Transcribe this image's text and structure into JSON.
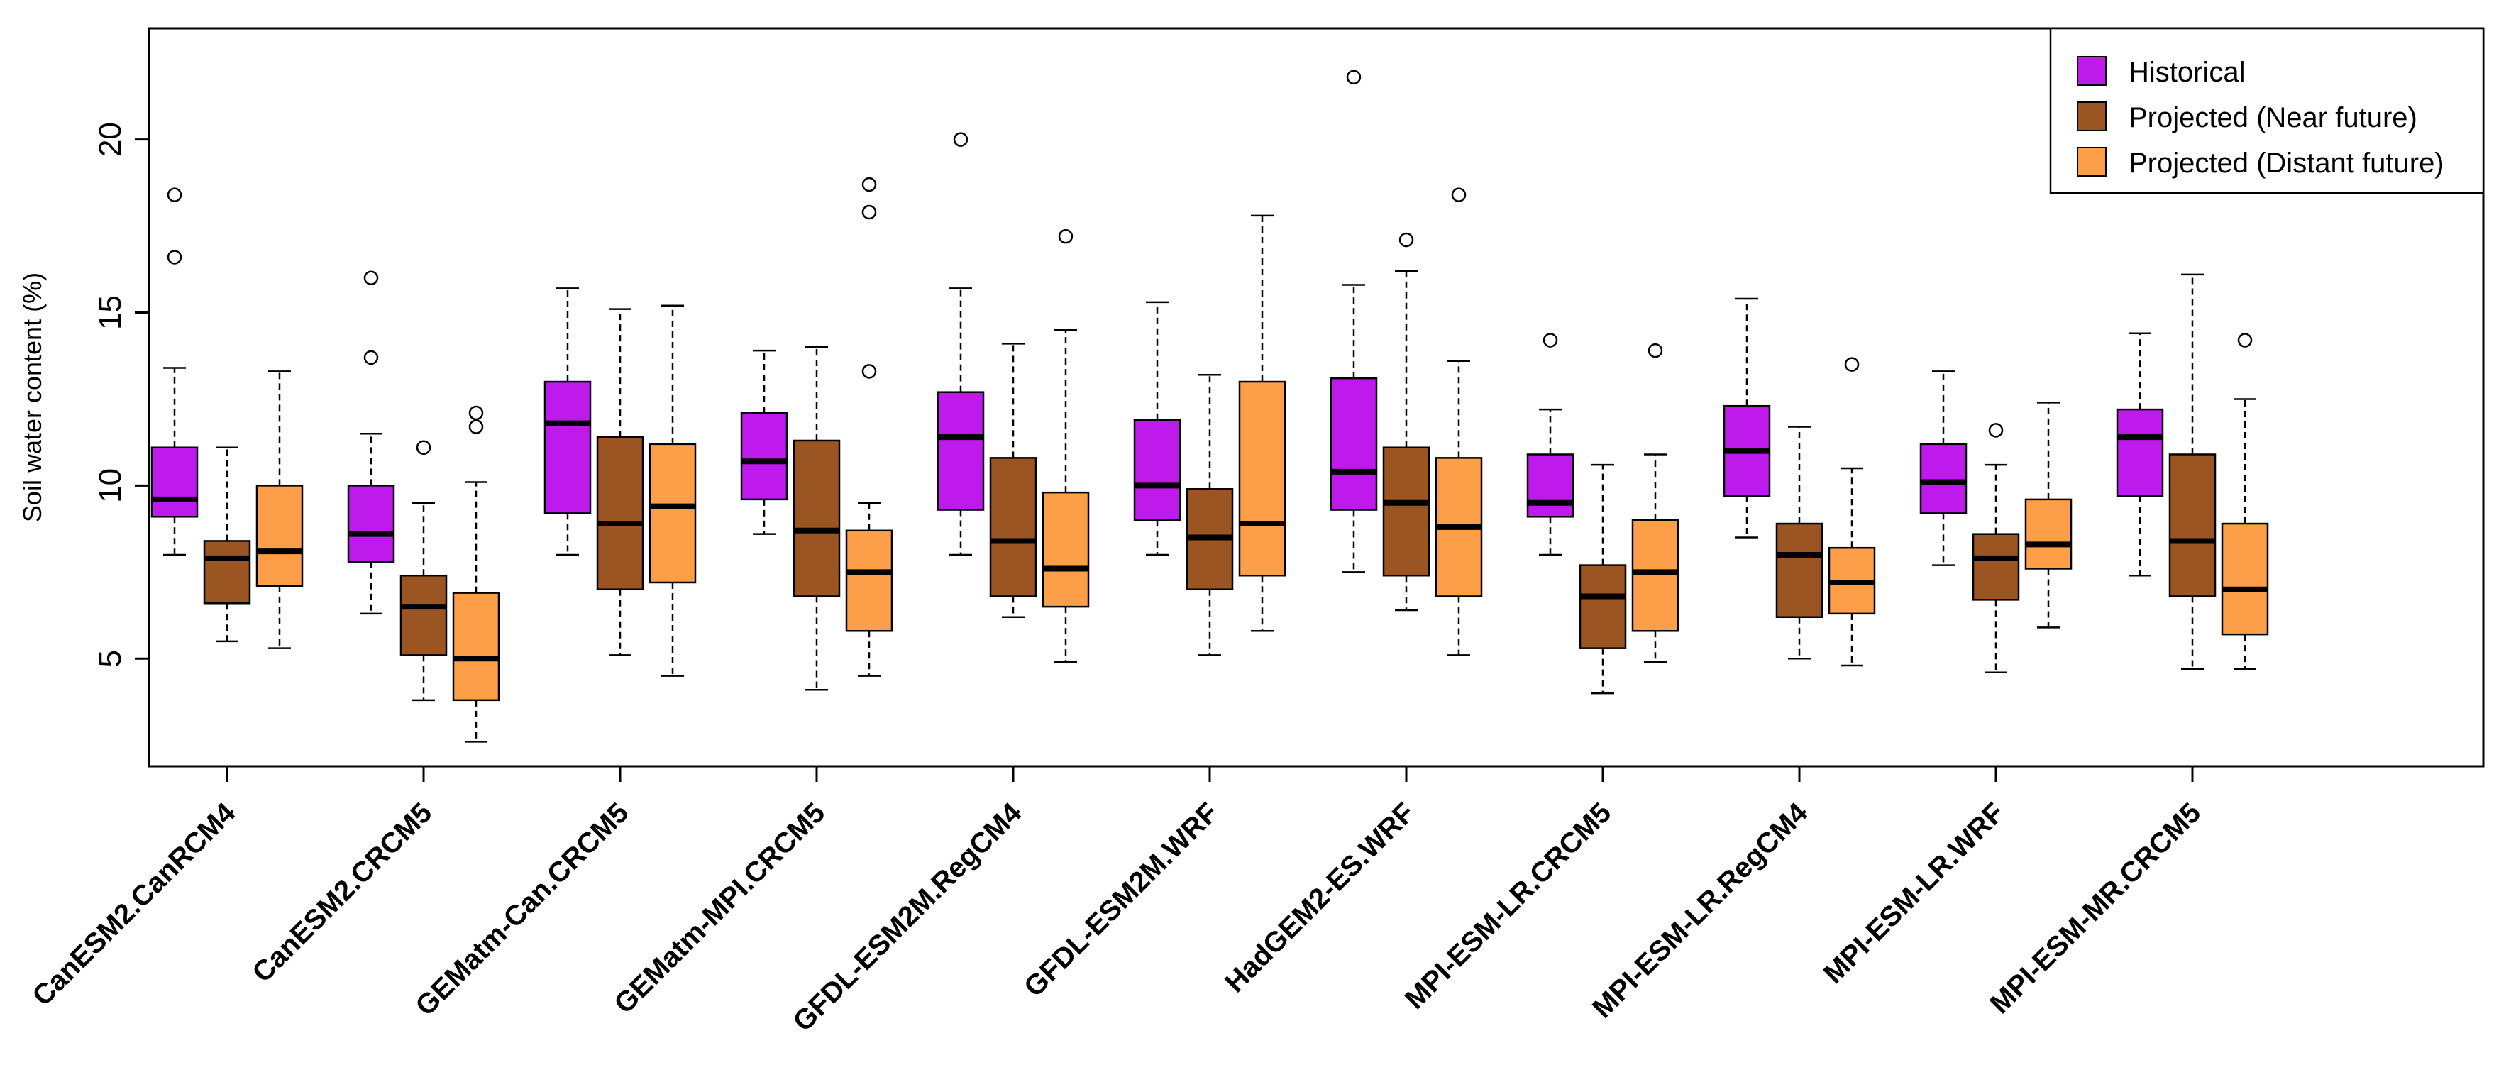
{
  "chart_data": {
    "type": "boxplot",
    "title": "",
    "xlabel": "",
    "ylabel": "Soil water content (%)",
    "ylim": [
      2.3,
      22.8
    ],
    "yticks": [
      5,
      10,
      15,
      20
    ],
    "grid": false,
    "legend_position": "top-right",
    "categories": [
      "CanESM2.CanRCM4",
      "CanESM2.CRCM5",
      "GEMatm-Can.CRCM5",
      "GEMatm-MPI.CRCM5",
      "GFDL-ESM2M.RegCM4",
      "GFDL-ESM2M.WRF",
      "HadGEM2-ES.WRF",
      "MPI-ESM-LR.CRCM5",
      "MPI-ESM-LR.RegCM4",
      "MPI-ESM-LR.WRF",
      "MPI-ESM-MR.CRCM5"
    ],
    "series": [
      {
        "name": "Historical",
        "color": "#BF1AEC",
        "boxes": [
          {
            "whisker_low": 8.0,
            "q1": 9.1,
            "median": 9.6,
            "q3": 11.1,
            "whisker_high": 13.4,
            "outliers": [
              16.6,
              18.4
            ]
          },
          {
            "whisker_low": 6.3,
            "q1": 7.8,
            "median": 8.6,
            "q3": 10.0,
            "whisker_high": 11.5,
            "outliers": [
              13.7,
              16.0
            ]
          },
          {
            "whisker_low": 8.0,
            "q1": 9.2,
            "median": 11.8,
            "q3": 13.0,
            "whisker_high": 15.7,
            "outliers": []
          },
          {
            "whisker_low": 8.6,
            "q1": 9.6,
            "median": 10.7,
            "q3": 12.1,
            "whisker_high": 13.9,
            "outliers": []
          },
          {
            "whisker_low": 8.0,
            "q1": 9.3,
            "median": 11.4,
            "q3": 12.7,
            "whisker_high": 15.7,
            "outliers": [
              20.0
            ]
          },
          {
            "whisker_low": 8.0,
            "q1": 9.0,
            "median": 10.0,
            "q3": 11.9,
            "whisker_high": 15.3,
            "outliers": []
          },
          {
            "whisker_low": 7.5,
            "q1": 9.3,
            "median": 10.4,
            "q3": 13.1,
            "whisker_high": 15.8,
            "outliers": [
              21.8
            ]
          },
          {
            "whisker_low": 8.0,
            "q1": 9.1,
            "median": 9.5,
            "q3": 10.9,
            "whisker_high": 12.2,
            "outliers": [
              14.2
            ]
          },
          {
            "whisker_low": 8.5,
            "q1": 9.7,
            "median": 11.0,
            "q3": 12.3,
            "whisker_high": 15.4,
            "outliers": []
          },
          {
            "whisker_low": 7.7,
            "q1": 9.2,
            "median": 10.1,
            "q3": 11.2,
            "whisker_high": 13.3,
            "outliers": []
          },
          {
            "whisker_low": 7.4,
            "q1": 9.7,
            "median": 11.4,
            "q3": 12.2,
            "whisker_high": 14.4,
            "outliers": []
          }
        ]
      },
      {
        "name": "Projected (Near future)",
        "color": "#9A5523",
        "boxes": [
          {
            "whisker_low": 5.5,
            "q1": 6.6,
            "median": 7.9,
            "q3": 8.4,
            "whisker_high": 11.1,
            "outliers": []
          },
          {
            "whisker_low": 3.8,
            "q1": 5.1,
            "median": 6.5,
            "q3": 7.4,
            "whisker_high": 9.5,
            "outliers": [
              11.1
            ]
          },
          {
            "whisker_low": 5.1,
            "q1": 7.0,
            "median": 8.9,
            "q3": 11.4,
            "whisker_high": 15.1,
            "outliers": []
          },
          {
            "whisker_low": 4.1,
            "q1": 6.8,
            "median": 8.7,
            "q3": 11.3,
            "whisker_high": 14.0,
            "outliers": []
          },
          {
            "whisker_low": 6.2,
            "q1": 6.8,
            "median": 8.4,
            "q3": 10.8,
            "whisker_high": 14.1,
            "outliers": []
          },
          {
            "whisker_low": 5.1,
            "q1": 7.0,
            "median": 8.5,
            "q3": 9.9,
            "whisker_high": 13.2,
            "outliers": []
          },
          {
            "whisker_low": 6.4,
            "q1": 7.4,
            "median": 9.5,
            "q3": 11.1,
            "whisker_high": 16.2,
            "outliers": [
              17.1
            ]
          },
          {
            "whisker_low": 4.0,
            "q1": 5.3,
            "median": 6.8,
            "q3": 7.7,
            "whisker_high": 10.6,
            "outliers": []
          },
          {
            "whisker_low": 5.0,
            "q1": 6.2,
            "median": 8.0,
            "q3": 8.9,
            "whisker_high": 11.7,
            "outliers": []
          },
          {
            "whisker_low": 4.6,
            "q1": 6.7,
            "median": 7.9,
            "q3": 8.6,
            "whisker_high": 10.6,
            "outliers": [
              11.6
            ]
          },
          {
            "whisker_low": 4.7,
            "q1": 6.8,
            "median": 8.4,
            "q3": 10.9,
            "whisker_high": 16.1,
            "outliers": []
          }
        ]
      },
      {
        "name": "Projected (Distant future)",
        "color": "#FD9F48",
        "boxes": [
          {
            "whisker_low": 5.3,
            "q1": 7.1,
            "median": 8.1,
            "q3": 10.0,
            "whisker_high": 13.3,
            "outliers": []
          },
          {
            "whisker_low": 2.6,
            "q1": 3.8,
            "median": 5.0,
            "q3": 6.9,
            "whisker_high": 10.1,
            "outliers": [
              11.7,
              12.1
            ]
          },
          {
            "whisker_low": 4.5,
            "q1": 7.2,
            "median": 9.4,
            "q3": 11.2,
            "whisker_high": 15.2,
            "outliers": []
          },
          {
            "whisker_low": 4.5,
            "q1": 5.8,
            "median": 7.5,
            "q3": 8.7,
            "whisker_high": 9.5,
            "outliers": [
              13.3,
              17.9,
              18.7
            ]
          },
          {
            "whisker_low": 4.9,
            "q1": 6.5,
            "median": 7.6,
            "q3": 9.8,
            "whisker_high": 14.5,
            "outliers": [
              17.2
            ]
          },
          {
            "whisker_low": 5.8,
            "q1": 7.4,
            "median": 8.9,
            "q3": 13.0,
            "whisker_high": 17.8,
            "outliers": []
          },
          {
            "whisker_low": 5.1,
            "q1": 6.8,
            "median": 8.8,
            "q3": 10.8,
            "whisker_high": 13.6,
            "outliers": [
              18.4
            ]
          },
          {
            "whisker_low": 4.9,
            "q1": 5.8,
            "median": 7.5,
            "q3": 9.0,
            "whisker_high": 10.9,
            "outliers": [
              13.9
            ]
          },
          {
            "whisker_low": 4.8,
            "q1": 6.3,
            "median": 7.2,
            "q3": 8.2,
            "whisker_high": 10.5,
            "outliers": [
              13.5
            ]
          },
          {
            "whisker_low": 5.9,
            "q1": 7.6,
            "median": 8.3,
            "q3": 9.6,
            "whisker_high": 12.4,
            "outliers": []
          },
          {
            "whisker_low": 4.7,
            "q1": 5.7,
            "median": 7.0,
            "q3": 8.9,
            "whisker_high": 12.5,
            "outliers": [
              14.2
            ]
          }
        ]
      }
    ]
  }
}
